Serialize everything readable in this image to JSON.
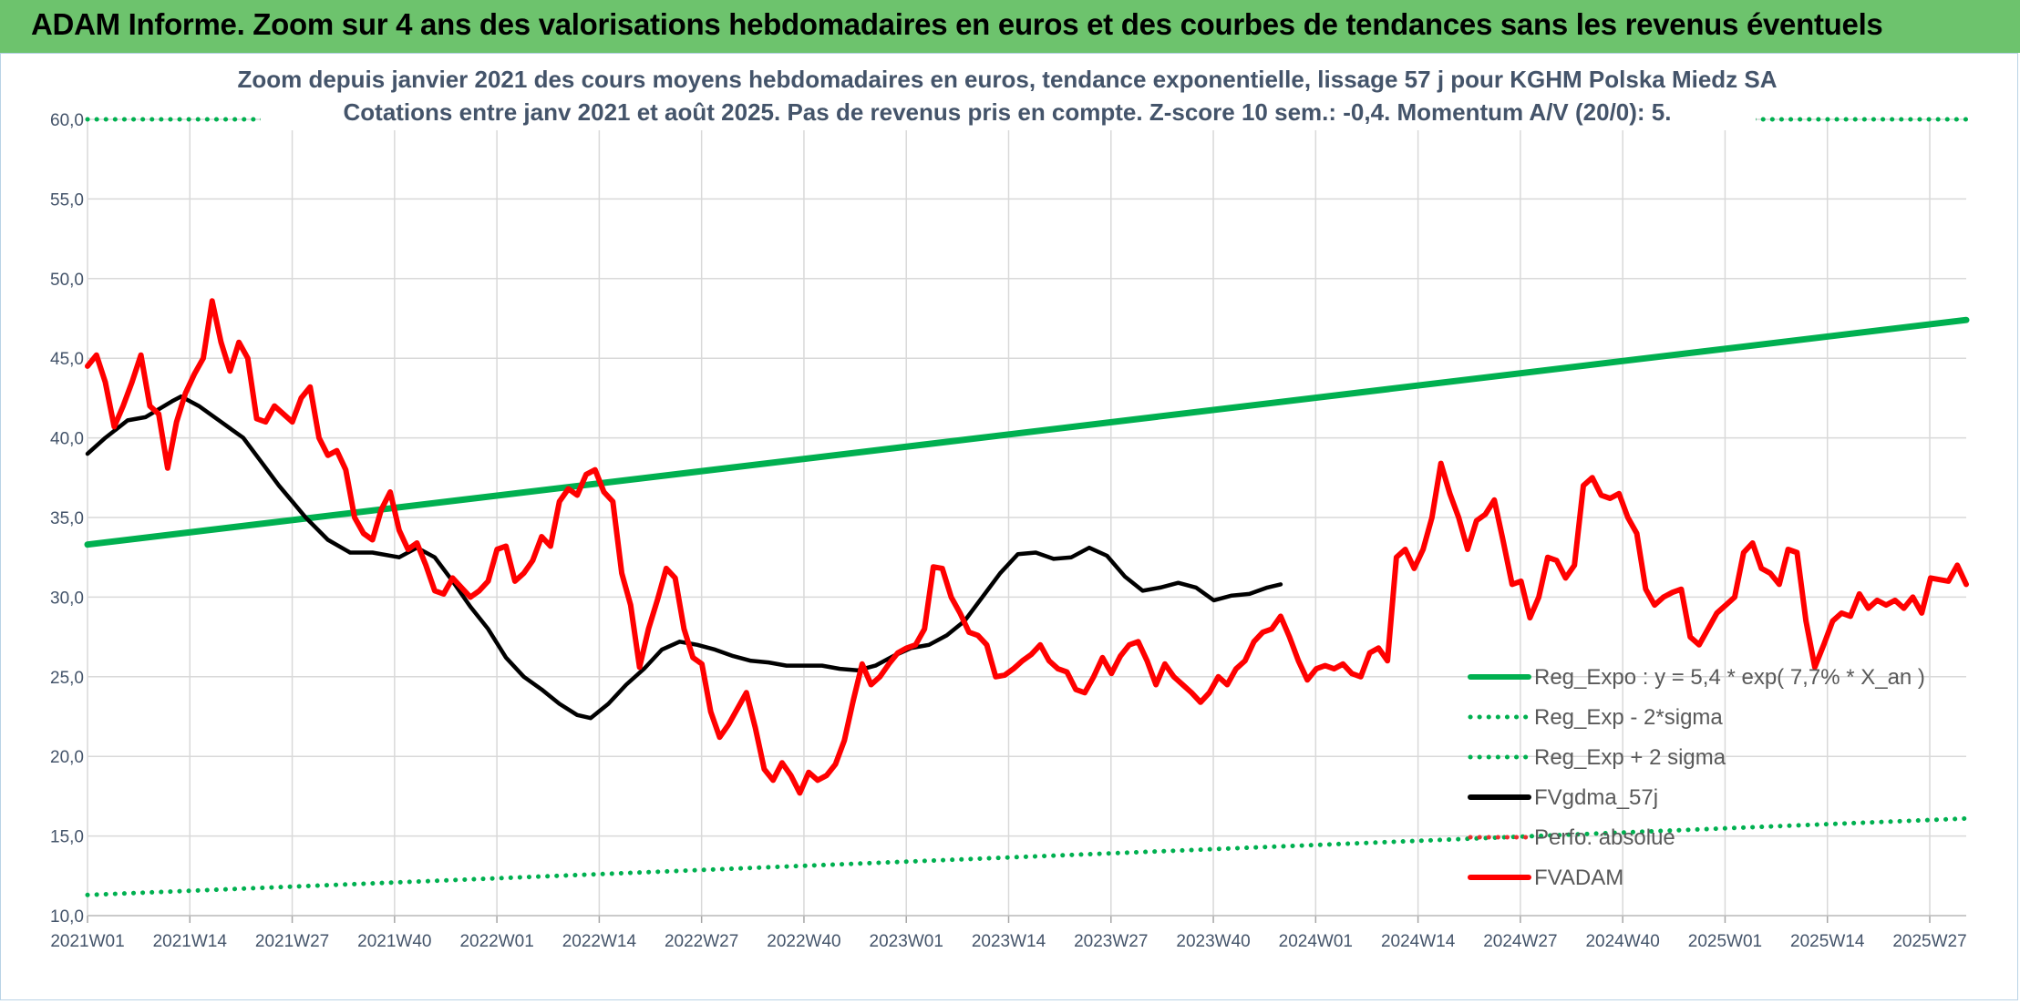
{
  "header": {
    "title": "ADAM Informe. Zoom sur 4 ans des valorisations hebdomadaires en euros et des courbes de tendances sans les revenus éventuels"
  },
  "chart_data": {
    "type": "line",
    "title": "Zoom depuis janvier 2021 des cours moyens hebdomadaires en euros, tendance exponentielle, lissage 57 j pour KGHM Polska Miedz SA",
    "subtitle": "Cotations entre janv 2021 et août 2025. Pas de revenus pris en compte. Z-score 10 sem.: -0,4. Momentum A/V (20/0): 5.",
    "xlabel": "",
    "ylabel": "",
    "ylim": [
      10,
      60
    ],
    "yticks": [
      "10,0",
      "15,0",
      "20,0",
      "25,0",
      "30,0",
      "35,0",
      "40,0",
      "45,0",
      "50,0",
      "55,0",
      "60,0"
    ],
    "xtick_labels": [
      "2021W01",
      "2021W14",
      "2021W27",
      "2021W40",
      "2022W01",
      "2022W14",
      "2022W27",
      "2022W40",
      "2023W01",
      "2023W14",
      "2023W27",
      "2023W40",
      "2024W01",
      "2024W14",
      "2024W27",
      "2024W40",
      "2025W01",
      "2025W14",
      "2025W27"
    ],
    "x_range_weeks": [
      0,
      239
    ],
    "grid": true,
    "legend_placement": "right",
    "colors": {
      "green": "#00b050",
      "black": "#000000",
      "red": "#ff0000",
      "dotred": "#e83030",
      "grid": "#d9d9d9"
    },
    "series": [
      {
        "name": "Reg_Expo : y = 5,4 * exp( 7,7% * X_an )",
        "style": "solid",
        "color": "#00b050",
        "points": [
          [
            0,
            33.3
          ],
          [
            239,
            47.4
          ]
        ]
      },
      {
        "name": "Reg_Exp - 2*sigma",
        "style": "dotted",
        "color": "#00b050",
        "points": [
          [
            0,
            11.3
          ],
          [
            239,
            16.1
          ]
        ]
      },
      {
        "name": "Reg_Exp + 2 sigma",
        "style": "dotted",
        "color": "#00b050",
        "points": [
          [
            0,
            60.0
          ],
          [
            239,
            60.0
          ]
        ]
      },
      {
        "name": "FVgdma_57j",
        "style": "solid",
        "color": "#000000",
        "points": [
          [
            0,
            39
          ],
          [
            4,
            40
          ],
          [
            9,
            41.1
          ],
          [
            13,
            41.3
          ],
          [
            19,
            42.3
          ],
          [
            21,
            42.6
          ],
          [
            25,
            42
          ],
          [
            30,
            41
          ],
          [
            35,
            40
          ],
          [
            39,
            38.5
          ],
          [
            43,
            37
          ],
          [
            46,
            36
          ],
          [
            49,
            35
          ],
          [
            54,
            33.6
          ],
          [
            59,
            32.8
          ],
          [
            64,
            32.8
          ],
          [
            70,
            32.5
          ],
          [
            74,
            33.1
          ],
          [
            78,
            32.5
          ],
          [
            82,
            31
          ],
          [
            86,
            29.4
          ],
          [
            90,
            28
          ],
          [
            94,
            26.2
          ],
          [
            98,
            25
          ],
          [
            102,
            24.2
          ],
          [
            106,
            23.3
          ],
          [
            110,
            22.6
          ],
          [
            113,
            22.4
          ],
          [
            117,
            23.3
          ],
          [
            121,
            24.5
          ],
          [
            125,
            25.5
          ],
          [
            129,
            26.7
          ],
          [
            133,
            27.2
          ],
          [
            137,
            27
          ],
          [
            141,
            26.7
          ],
          [
            145,
            26.3
          ],
          [
            149,
            26
          ],
          [
            153,
            25.9
          ],
          [
            157,
            25.7
          ],
          [
            161,
            25.7
          ],
          [
            165,
            25.7
          ],
          [
            169,
            25.5
          ],
          [
            173,
            25.4
          ],
          [
            177,
            25.7
          ],
          [
            181,
            26.3
          ],
          [
            185,
            26.8
          ],
          [
            189,
            27
          ],
          [
            193,
            27.6
          ],
          [
            197,
            28.5
          ],
          [
            201,
            30
          ],
          [
            205,
            31.5
          ],
          [
            209,
            32.7
          ],
          [
            213,
            32.8
          ],
          [
            217,
            32.4
          ],
          [
            221,
            32.5
          ],
          [
            225,
            33.1
          ],
          [
            229,
            32.6
          ],
          [
            233,
            31.3
          ],
          [
            237,
            30.4
          ],
          [
            241,
            30.6
          ],
          [
            245,
            30.9
          ],
          [
            249,
            30.6
          ],
          [
            253,
            29.8
          ],
          [
            257,
            30.1
          ],
          [
            261,
            30.2
          ],
          [
            265,
            30.6
          ],
          [
            268,
            30.8
          ]
        ]
      },
      {
        "name": "Perfo. absolue",
        "style": "dotted",
        "color": "#e83030",
        "points": []
      },
      {
        "name": "FVADAM",
        "style": "solid",
        "color": "#ff0000",
        "points": [
          [
            0,
            44.5
          ],
          [
            2,
            45.2
          ],
          [
            4,
            43.5
          ],
          [
            6,
            40.7
          ],
          [
            8,
            42
          ],
          [
            10,
            43.5
          ],
          [
            12,
            45.2
          ],
          [
            14,
            42
          ],
          [
            16,
            41.5
          ],
          [
            18,
            38.1
          ],
          [
            20,
            41
          ],
          [
            22,
            42.8
          ],
          [
            24,
            44
          ],
          [
            26,
            45
          ],
          [
            28,
            48.6
          ],
          [
            30,
            46
          ],
          [
            32,
            44.2
          ],
          [
            34,
            46
          ],
          [
            36,
            45
          ],
          [
            38,
            41.2
          ],
          [
            40,
            41
          ],
          [
            42,
            42
          ],
          [
            44,
            41.5
          ],
          [
            46,
            41
          ],
          [
            48,
            42.5
          ],
          [
            50,
            43.2
          ],
          [
            52,
            40
          ],
          [
            54,
            38.9
          ],
          [
            56,
            39.2
          ],
          [
            58,
            38
          ],
          [
            60,
            35
          ],
          [
            62,
            34
          ],
          [
            64,
            33.6
          ],
          [
            66,
            35.5
          ],
          [
            68,
            36.6
          ],
          [
            70,
            34.2
          ],
          [
            72,
            33
          ],
          [
            74,
            33.4
          ],
          [
            76,
            32
          ],
          [
            78,
            30.4
          ],
          [
            80,
            30.2
          ],
          [
            82,
            31.2
          ],
          [
            84,
            30.6
          ],
          [
            86,
            30
          ],
          [
            88,
            30.4
          ],
          [
            90,
            31
          ],
          [
            92,
            33
          ],
          [
            94,
            33.2
          ],
          [
            96,
            31
          ],
          [
            98,
            31.5
          ],
          [
            100,
            32.3
          ],
          [
            102,
            33.8
          ],
          [
            104,
            33.2
          ],
          [
            106,
            36
          ],
          [
            108,
            36.8
          ],
          [
            110,
            36.4
          ],
          [
            112,
            37.7
          ],
          [
            114,
            38
          ],
          [
            116,
            36.6
          ],
          [
            118,
            36
          ],
          [
            120,
            31.5
          ],
          [
            122,
            29.5
          ],
          [
            124,
            25.6
          ],
          [
            126,
            28
          ],
          [
            128,
            29.8
          ],
          [
            130,
            31.8
          ],
          [
            132,
            31.2
          ],
          [
            134,
            28
          ],
          [
            136,
            26.2
          ],
          [
            138,
            25.8
          ],
          [
            140,
            22.8
          ],
          [
            142,
            21.2
          ],
          [
            144,
            22
          ],
          [
            146,
            23
          ],
          [
            148,
            24
          ],
          [
            150,
            21.8
          ],
          [
            152,
            19.2
          ],
          [
            154,
            18.5
          ],
          [
            156,
            19.6
          ],
          [
            158,
            18.8
          ],
          [
            160,
            17.7
          ],
          [
            162,
            19
          ],
          [
            164,
            18.5
          ],
          [
            166,
            18.8
          ],
          [
            168,
            19.5
          ],
          [
            170,
            21
          ],
          [
            172,
            23.5
          ],
          [
            174,
            25.8
          ],
          [
            176,
            24.5
          ],
          [
            178,
            25
          ],
          [
            180,
            25.8
          ],
          [
            182,
            26.5
          ],
          [
            184,
            26.8
          ],
          [
            186,
            27
          ],
          [
            188,
            28
          ],
          [
            190,
            31.9
          ],
          [
            192,
            31.8
          ],
          [
            194,
            30
          ],
          [
            196,
            29
          ],
          [
            198,
            27.8
          ],
          [
            200,
            27.6
          ],
          [
            202,
            27
          ],
          [
            204,
            25
          ],
          [
            206,
            25.1
          ],
          [
            208,
            25.5
          ],
          [
            210,
            26
          ],
          [
            212,
            26.4
          ],
          [
            214,
            27
          ],
          [
            216,
            26
          ],
          [
            218,
            25.5
          ],
          [
            220,
            25.3
          ],
          [
            222,
            24.2
          ],
          [
            224,
            24
          ],
          [
            226,
            25
          ],
          [
            228,
            26.2
          ],
          [
            230,
            25.2
          ],
          [
            232,
            26.3
          ],
          [
            234,
            27
          ],
          [
            236,
            27.2
          ],
          [
            238,
            26
          ],
          [
            240,
            24.5
          ],
          [
            242,
            25.8
          ],
          [
            244,
            25
          ],
          [
            246,
            24.5
          ],
          [
            248,
            24
          ],
          [
            250,
            23.4
          ],
          [
            252,
            24
          ],
          [
            254,
            25
          ],
          [
            256,
            24.5
          ],
          [
            258,
            25.5
          ],
          [
            260,
            26
          ],
          [
            262,
            27.2
          ],
          [
            264,
            27.8
          ],
          [
            266,
            28
          ],
          [
            268,
            28.8
          ],
          [
            270,
            27.5
          ],
          [
            272,
            26
          ],
          [
            274,
            24.8
          ],
          [
            276,
            25.5
          ],
          [
            278,
            25.7
          ],
          [
            280,
            25.5
          ],
          [
            282,
            25.8
          ],
          [
            284,
            25.2
          ],
          [
            286,
            25
          ],
          [
            288,
            26.5
          ],
          [
            290,
            26.8
          ],
          [
            292,
            26
          ],
          [
            294,
            32.5
          ],
          [
            296,
            33
          ],
          [
            298,
            31.8
          ],
          [
            300,
            33
          ],
          [
            302,
            35
          ],
          [
            304,
            38.4
          ],
          [
            306,
            36.5
          ],
          [
            308,
            35
          ],
          [
            310,
            33
          ],
          [
            312,
            34.8
          ],
          [
            314,
            35.2
          ],
          [
            316,
            36.1
          ],
          [
            318,
            33.5
          ],
          [
            320,
            30.8
          ],
          [
            322,
            31
          ],
          [
            324,
            28.7
          ],
          [
            326,
            30
          ],
          [
            328,
            32.5
          ],
          [
            330,
            32.3
          ],
          [
            332,
            31.2
          ],
          [
            334,
            32
          ],
          [
            336,
            37
          ],
          [
            338,
            37.5
          ],
          [
            340,
            36.4
          ],
          [
            342,
            36.2
          ],
          [
            344,
            36.5
          ],
          [
            346,
            35
          ],
          [
            348,
            34
          ],
          [
            350,
            30.5
          ],
          [
            352,
            29.5
          ],
          [
            354,
            30
          ],
          [
            356,
            30.3
          ],
          [
            358,
            30.5
          ],
          [
            360,
            27.5
          ],
          [
            362,
            27
          ],
          [
            364,
            28
          ],
          [
            366,
            29
          ],
          [
            368,
            29.5
          ],
          [
            370,
            30
          ],
          [
            372,
            32.8
          ],
          [
            374,
            33.4
          ],
          [
            376,
            31.8
          ],
          [
            378,
            31.5
          ],
          [
            380,
            30.8
          ],
          [
            382,
            33
          ],
          [
            384,
            32.8
          ],
          [
            386,
            28.5
          ],
          [
            388,
            25.6
          ],
          [
            390,
            27
          ],
          [
            392,
            28.5
          ],
          [
            394,
            29
          ],
          [
            396,
            28.8
          ],
          [
            398,
            30.2
          ],
          [
            400,
            29.3
          ],
          [
            402,
            29.8
          ],
          [
            404,
            29.5
          ],
          [
            406,
            29.8
          ],
          [
            408,
            29.3
          ],
          [
            410,
            30
          ],
          [
            412,
            29
          ],
          [
            414,
            31.2
          ],
          [
            416,
            31.1
          ],
          [
            418,
            31
          ],
          [
            420,
            32
          ],
          [
            422,
            30.8
          ]
        ]
      }
    ]
  }
}
